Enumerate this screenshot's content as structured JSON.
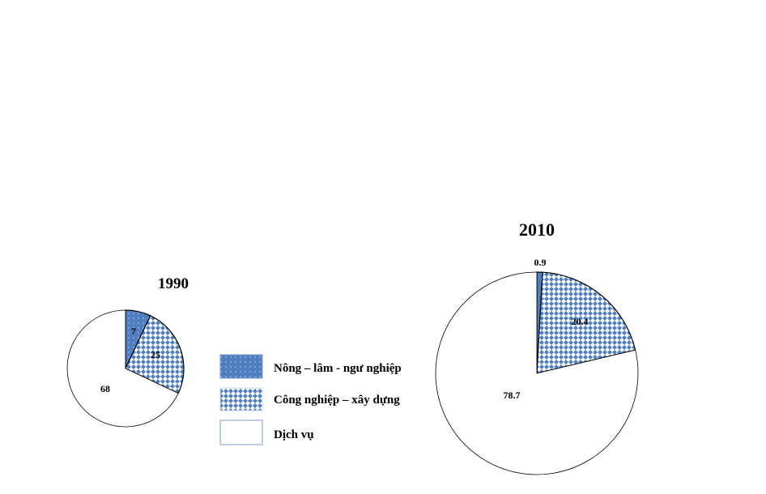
{
  "chart_data": {
    "type": "pie",
    "categories": [
      "Nông – lâm - ngư nghiệp",
      "Công nghiệp – xây dựng",
      "Dịch vụ"
    ],
    "charts": [
      {
        "title": "1990",
        "values": [
          7,
          25,
          68
        ],
        "labels": [
          "7",
          "25",
          "68"
        ]
      },
      {
        "title": "2010",
        "values": [
          0.9,
          20.4,
          78.7
        ],
        "labels": [
          "0.9",
          "20.4",
          "78.7"
        ]
      }
    ],
    "legend": "center",
    "colors": {
      "agriculture": "#4f7fc0",
      "industry": "#4f7fc0",
      "service": "#ffffff",
      "outline": "#000000",
      "legend_border": "#7f9fcf"
    }
  }
}
